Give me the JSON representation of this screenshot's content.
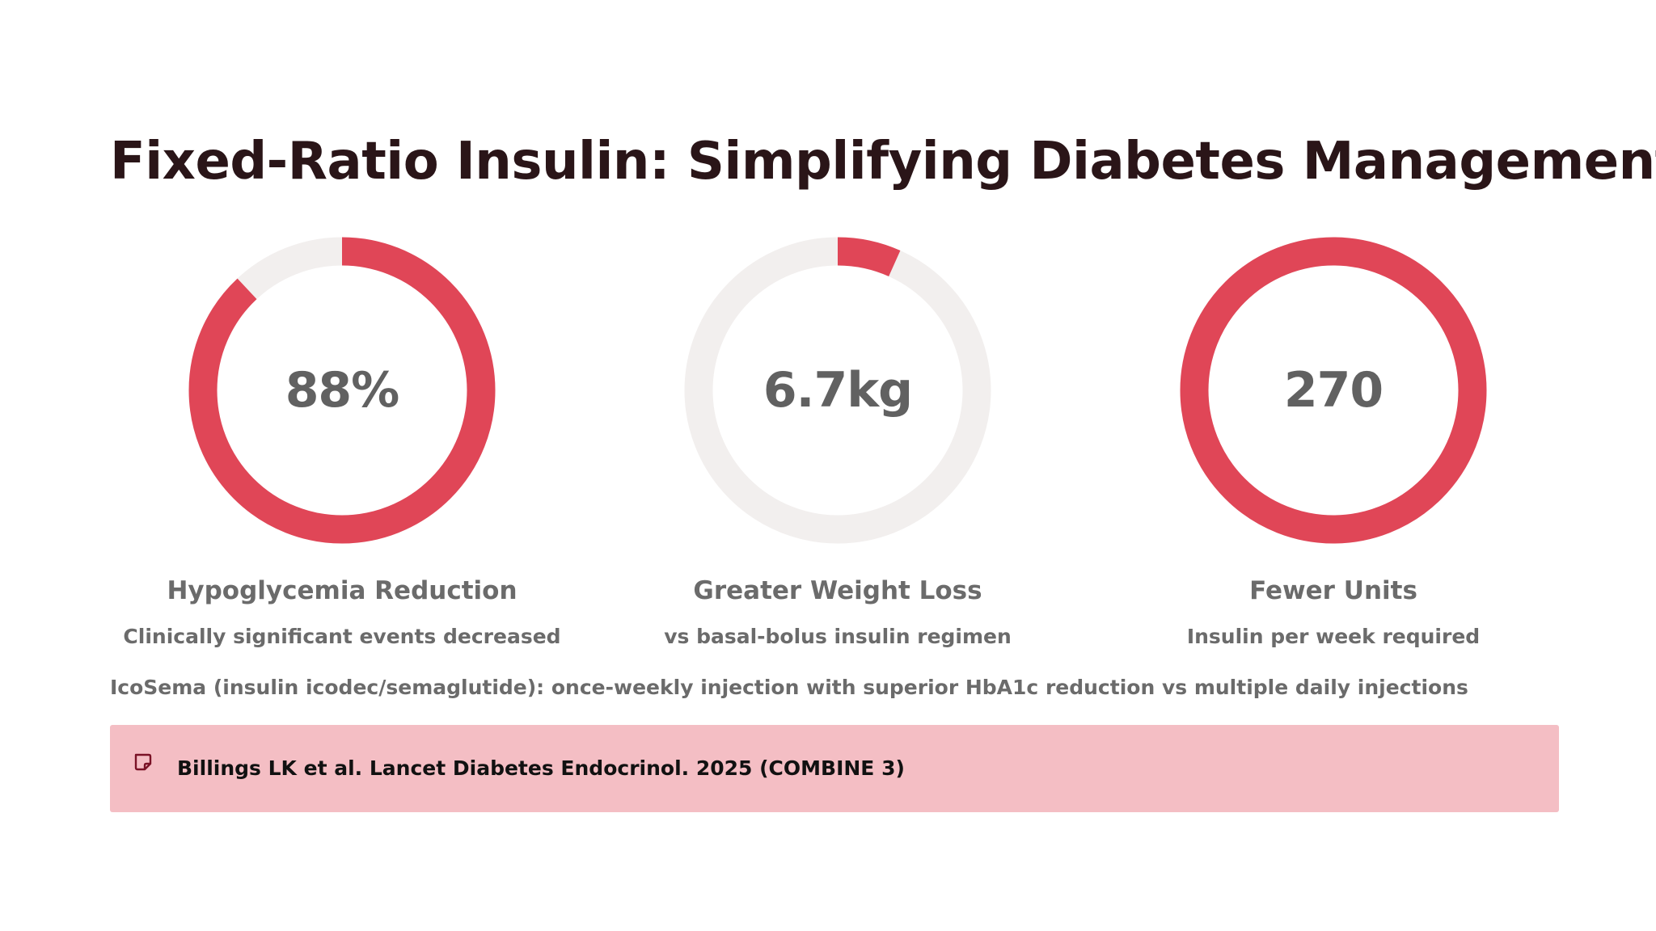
{
  "slide": {
    "title": "Fixed-Ratio Insulin: Simplifying Diabetes Management",
    "stats": [
      {
        "value": "88%",
        "label": "Hypoglycemia Reduction",
        "sub": "Clinically significant events decreased",
        "fill_fraction": 0.88
      },
      {
        "value": "6.7kg",
        "label": "Greater Weight Loss",
        "sub": "vs basal-bolus insulin regimen",
        "fill_fraction": 0.067
      },
      {
        "value": "270",
        "label": "Fewer Units",
        "sub": "Insulin per week required",
        "fill_fraction": 1.0
      }
    ],
    "summary": "IcoSema (insulin icodec/semaglutide): once-weekly injection with superior HbA1c reduction vs multiple daily injections",
    "citation": {
      "icon": "note-icon",
      "text": "Billings LK et al. Lancet Diabetes Endocrinol. 2025 (COMBINE 3)"
    },
    "colors": {
      "accent": "#e04657",
      "track": "#f2efee",
      "citation_bg": "#f4bec4",
      "title": "#2a1518",
      "muted_text": "#6b6b6b"
    }
  }
}
